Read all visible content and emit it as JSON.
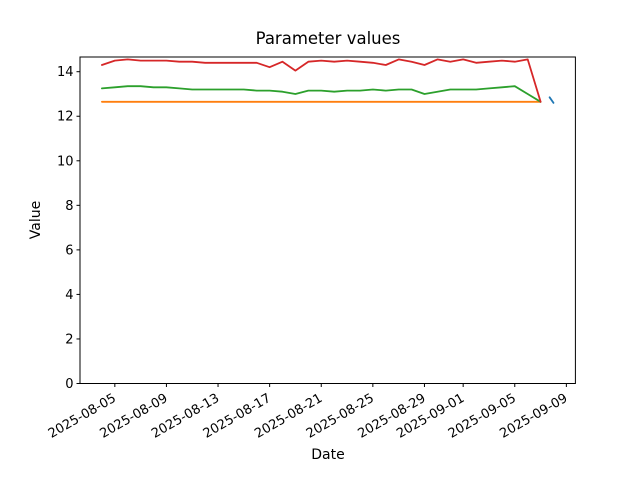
{
  "chart_data": {
    "type": "line",
    "title": "Parameter values",
    "xlabel": "Date",
    "ylabel": "Value",
    "grid": false,
    "legend": "none",
    "axis_color": "#000000",
    "x_start_date": "2025-08-04",
    "x_end_date": "2025-09-07",
    "x_tick_labels": [
      "2025-08-05",
      "2025-08-09",
      "2025-08-13",
      "2025-08-17",
      "2025-08-21",
      "2025-08-25",
      "2025-08-29",
      "2025-09-01",
      "2025-09-05",
      "2025-09-09"
    ],
    "x_tick_days": [
      1,
      5,
      9,
      13,
      17,
      21,
      25,
      28,
      32,
      36
    ],
    "y_ticks": [
      0,
      2,
      4,
      6,
      8,
      10,
      12,
      14
    ],
    "ylim": [
      0,
      14.66
    ],
    "xlim_days": [
      -1.7,
      36.7
    ],
    "series": [
      {
        "name": "blue",
        "color": "#1f77b4",
        "date": "2025-09-08",
        "points": [
          [
            34.7,
            12.85
          ],
          [
            35.0,
            12.6
          ]
        ]
      },
      {
        "name": "orange",
        "color": "#ff7f0e",
        "start_day": 0,
        "values": [
          12.65,
          12.65,
          12.65,
          12.65,
          12.65,
          12.65,
          12.65,
          12.65,
          12.65,
          12.65,
          12.65,
          12.65,
          12.65,
          12.65,
          12.65,
          12.65,
          12.65,
          12.65,
          12.65,
          12.65,
          12.65,
          12.65,
          12.65,
          12.65,
          12.65,
          12.65,
          12.65,
          12.65,
          12.65,
          12.65,
          12.65,
          12.65,
          12.65,
          12.65,
          12.65
        ]
      },
      {
        "name": "green",
        "color": "#2ca02c",
        "start_day": 0,
        "values": [
          13.25,
          13.3,
          13.35,
          13.35,
          13.3,
          13.3,
          13.25,
          13.2,
          13.2,
          13.2,
          13.2,
          13.2,
          13.15,
          13.15,
          13.1,
          13.0,
          13.15,
          13.15,
          13.1,
          13.15,
          13.15,
          13.2,
          13.15,
          13.2,
          13.2,
          13.0,
          13.1,
          13.2,
          13.2,
          13.2,
          13.25,
          13.3,
          13.35,
          13.0,
          12.65
        ]
      },
      {
        "name": "red",
        "color": "#d62728",
        "start_day": 0,
        "values": [
          14.3,
          14.5,
          14.55,
          14.5,
          14.5,
          14.5,
          14.45,
          14.45,
          14.4,
          14.4,
          14.4,
          14.4,
          14.4,
          14.2,
          14.45,
          14.05,
          14.45,
          14.5,
          14.45,
          14.5,
          14.45,
          14.4,
          14.3,
          14.55,
          14.45,
          14.3,
          14.55,
          14.45,
          14.55,
          14.4,
          14.45,
          14.5,
          14.45,
          14.55,
          12.65
        ]
      }
    ]
  }
}
